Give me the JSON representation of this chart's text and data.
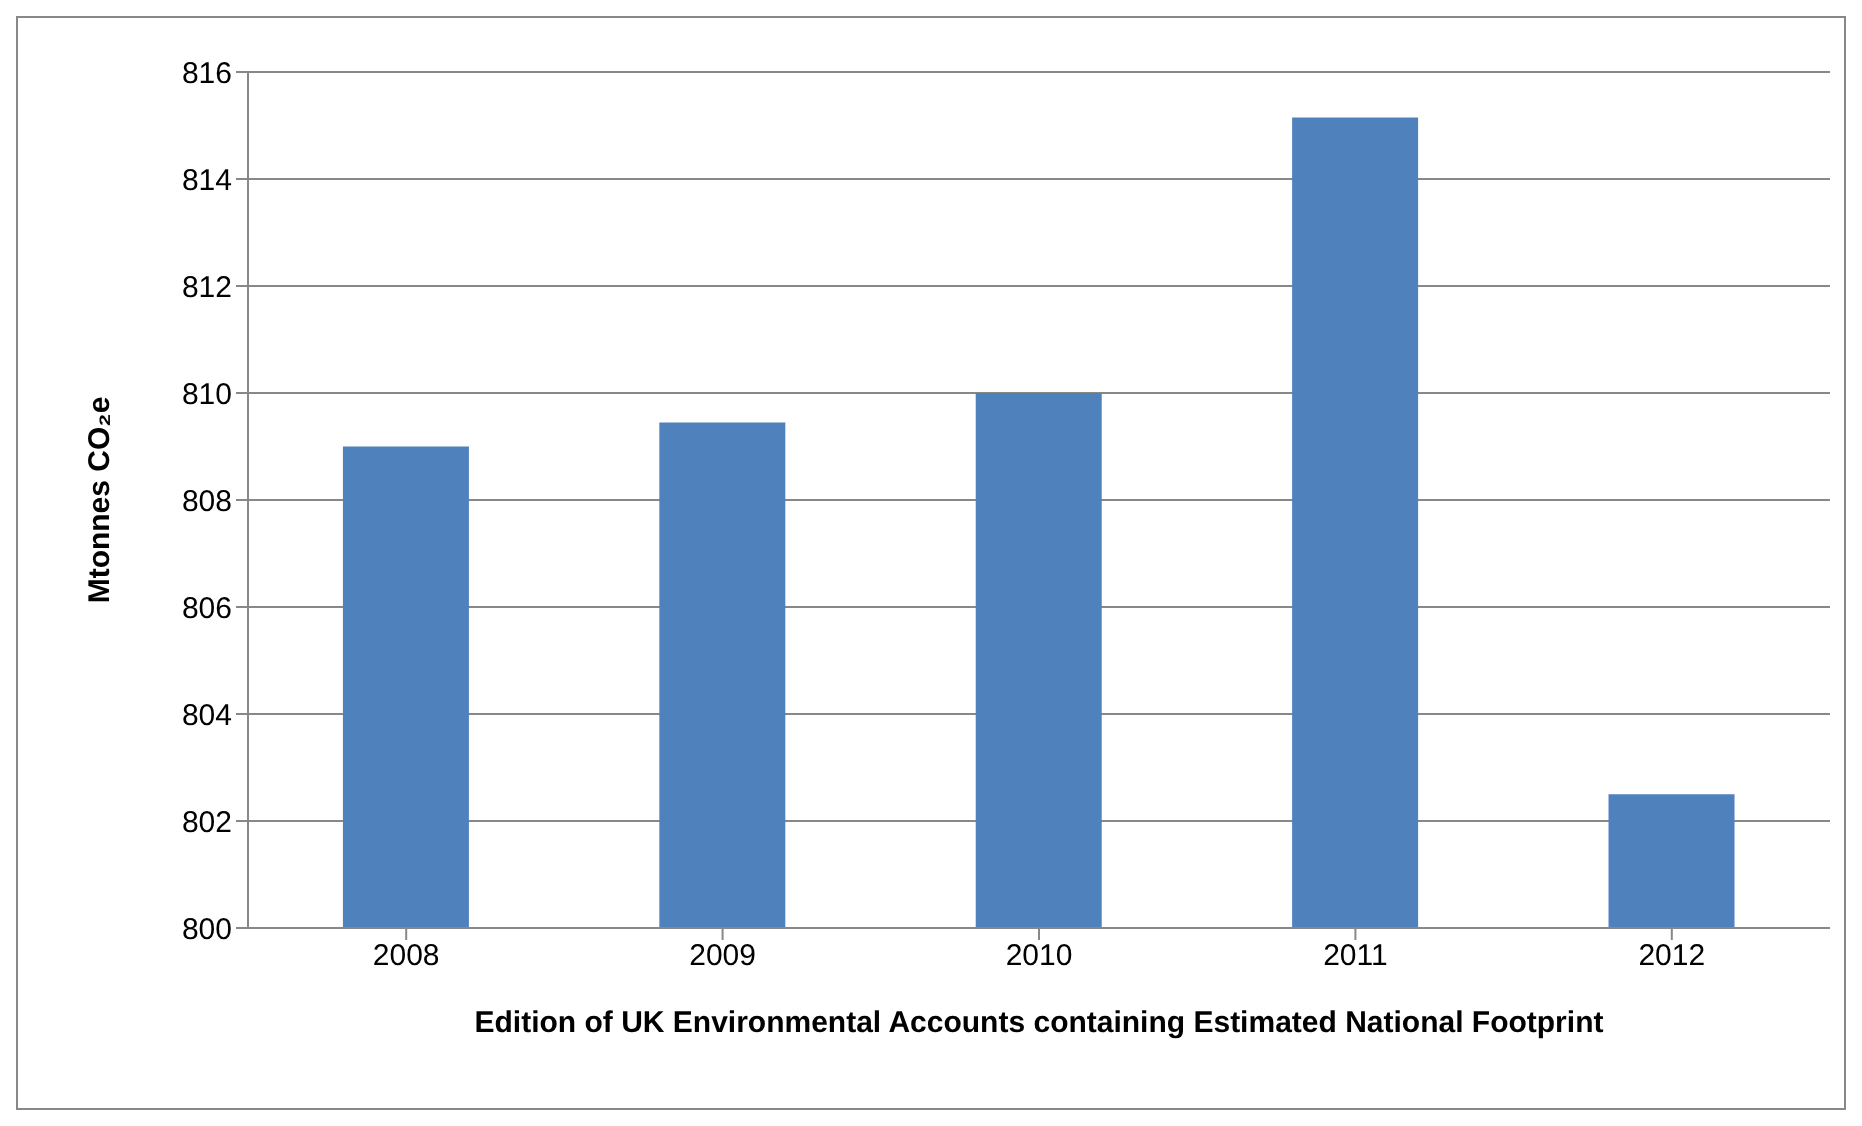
{
  "chart_data": {
    "type": "bar",
    "xlabel": "Edition of UK Environmental Accounts containing Estimated National Footprint",
    "ylabel": "Mtonnes CO₂e",
    "categories": [
      "2008",
      "2009",
      "2010",
      "2011",
      "2012"
    ],
    "values": [
      809.0,
      809.45,
      810.0,
      815.15,
      802.5
    ],
    "color": "#4f81bd",
    "ylim": [
      800,
      816
    ],
    "yticks": [
      800,
      802,
      804,
      806,
      808,
      810,
      812,
      814,
      816
    ],
    "grid": "y"
  }
}
